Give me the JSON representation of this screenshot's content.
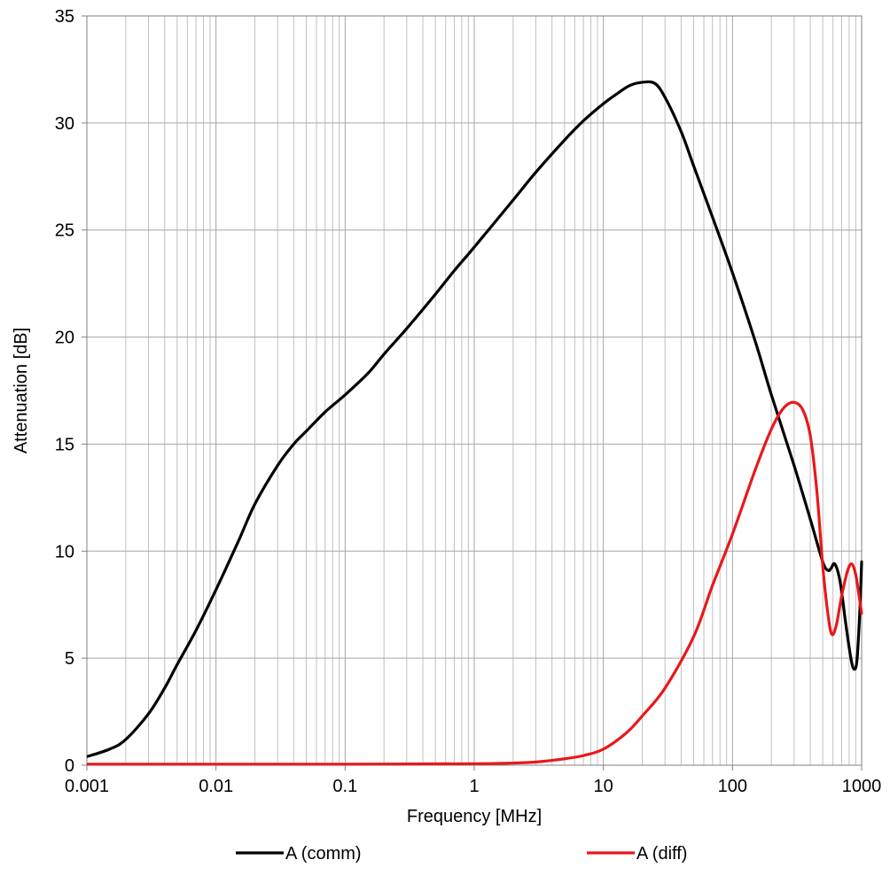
{
  "chart_data": {
    "type": "line",
    "xlabel": "Frequency [MHz]",
    "ylabel": "Attenuation [dB]",
    "x_scale": "log",
    "xlim": [
      0.001,
      1000
    ],
    "ylim": [
      0,
      35
    ],
    "x_ticks": [
      0.001,
      0.01,
      0.1,
      1,
      10,
      100,
      1000
    ],
    "x_tick_labels": [
      "0.001",
      "0.01",
      "0.1",
      "1",
      "10",
      "100",
      "1000"
    ],
    "y_ticks": [
      0,
      5,
      10,
      15,
      20,
      25,
      30,
      35
    ],
    "y_tick_labels": [
      "0",
      "5",
      "10",
      "15",
      "20",
      "25",
      "30",
      "35"
    ],
    "grid": true,
    "legend_position": "bottom",
    "series": [
      {
        "name": "A (comm)",
        "color": "#000000",
        "points": [
          [
            0.001,
            0.4
          ],
          [
            0.0015,
            0.75
          ],
          [
            0.002,
            1.2
          ],
          [
            0.003,
            2.4
          ],
          [
            0.004,
            3.6
          ],
          [
            0.005,
            4.7
          ],
          [
            0.007,
            6.3
          ],
          [
            0.01,
            8.2
          ],
          [
            0.015,
            10.5
          ],
          [
            0.02,
            12.2
          ],
          [
            0.03,
            14.0
          ],
          [
            0.04,
            15.0
          ],
          [
            0.05,
            15.6
          ],
          [
            0.07,
            16.5
          ],
          [
            0.1,
            17.3
          ],
          [
            0.15,
            18.3
          ],
          [
            0.2,
            19.2
          ],
          [
            0.3,
            20.4
          ],
          [
            0.5,
            22.0
          ],
          [
            0.7,
            23.1
          ],
          [
            1,
            24.2
          ],
          [
            2,
            26.4
          ],
          [
            3,
            27.7
          ],
          [
            5,
            29.2
          ],
          [
            7,
            30.1
          ],
          [
            10,
            30.9
          ],
          [
            13,
            31.4
          ],
          [
            16,
            31.75
          ],
          [
            20,
            31.9
          ],
          [
            25,
            31.85
          ],
          [
            30,
            31.2
          ],
          [
            40,
            29.6
          ],
          [
            50,
            28.0
          ],
          [
            70,
            25.6
          ],
          [
            100,
            23.0
          ],
          [
            150,
            19.8
          ],
          [
            200,
            17.3
          ],
          [
            300,
            14.0
          ],
          [
            400,
            11.5
          ],
          [
            500,
            9.5
          ],
          [
            550,
            9.1
          ],
          [
            580,
            9.2
          ],
          [
            620,
            9.4
          ],
          [
            680,
            8.6
          ],
          [
            750,
            6.7
          ],
          [
            820,
            5.1
          ],
          [
            870,
            4.5
          ],
          [
            920,
            4.9
          ],
          [
            970,
            7.3
          ],
          [
            1000,
            9.5
          ]
        ]
      },
      {
        "name": "A (diff)",
        "color": "#e8181d",
        "points": [
          [
            0.001,
            0.05
          ],
          [
            0.01,
            0.05
          ],
          [
            0.1,
            0.05
          ],
          [
            1,
            0.07
          ],
          [
            2,
            0.1
          ],
          [
            3,
            0.15
          ],
          [
            5,
            0.3
          ],
          [
            7,
            0.45
          ],
          [
            10,
            0.75
          ],
          [
            15,
            1.5
          ],
          [
            20,
            2.3
          ],
          [
            30,
            3.6
          ],
          [
            50,
            6.0
          ],
          [
            70,
            8.4
          ],
          [
            100,
            10.8
          ],
          [
            150,
            13.8
          ],
          [
            200,
            15.7
          ],
          [
            250,
            16.7
          ],
          [
            300,
            16.95
          ],
          [
            350,
            16.6
          ],
          [
            400,
            15.4
          ],
          [
            450,
            12.8
          ],
          [
            500,
            9.3
          ],
          [
            550,
            7.0
          ],
          [
            590,
            6.1
          ],
          [
            640,
            6.6
          ],
          [
            700,
            7.9
          ],
          [
            780,
            9.1
          ],
          [
            840,
            9.4
          ],
          [
            900,
            8.9
          ],
          [
            950,
            8.0
          ],
          [
            1000,
            7.1
          ]
        ]
      }
    ]
  }
}
